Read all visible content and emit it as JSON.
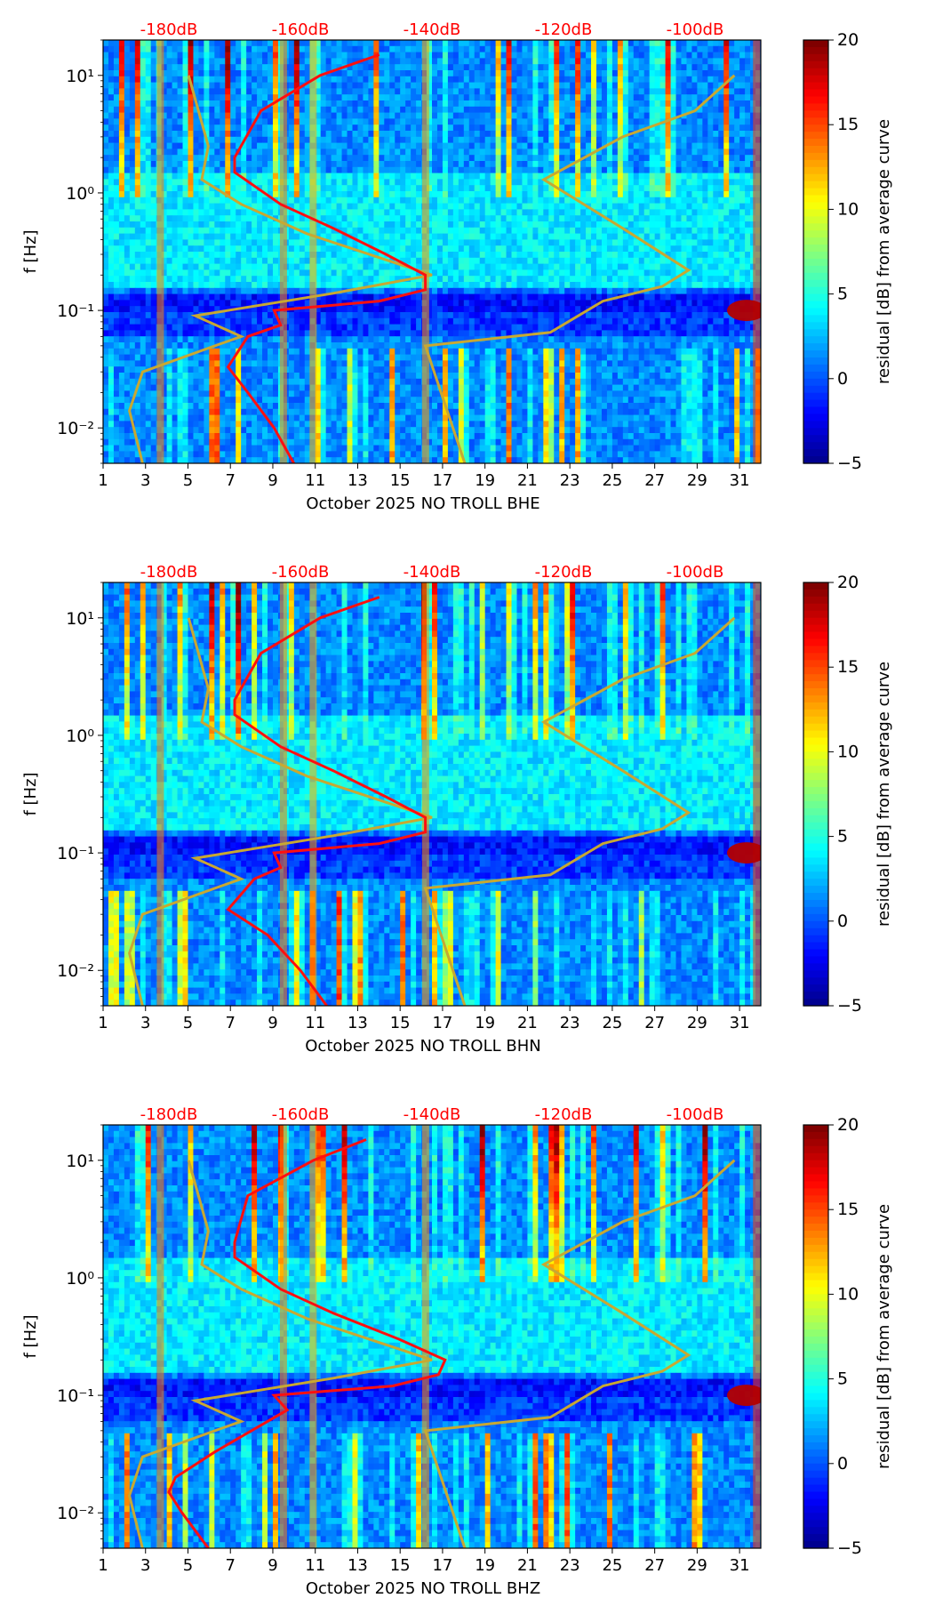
{
  "colors": {
    "db_scale": "#ff0000",
    "noise_model": "#c8a832",
    "psd_curve": "#ff1010"
  },
  "colorbar": {
    "label": "residual [dB] from average curve",
    "ticks": [
      "20",
      "15",
      "10",
      "5",
      "0",
      "−5"
    ],
    "range": [
      -5,
      20
    ],
    "colormap": "jet"
  },
  "chart_data": [
    {
      "type": "heatmap",
      "title": "",
      "xlabel": "October 2025 NO TROLL  BHE",
      "ylabel": "f [Hz]",
      "x_ticks": [
        "1",
        "3",
        "5",
        "7",
        "9",
        "11",
        "13",
        "15",
        "17",
        "19",
        "21",
        "23",
        "25",
        "27",
        "29",
        "31"
      ],
      "x_range": [
        1,
        32
      ],
      "y_ticks": [
        "10⁻²",
        "10⁻¹",
        "10⁰",
        "10¹"
      ],
      "y_range_hz": [
        0.005,
        20
      ],
      "top_axis_ticks": [
        "-180dB",
        "-160dB",
        "-140dB",
        "-120dB",
        "-100dB"
      ],
      "top_axis_range_db": [
        -190,
        -90
      ],
      "psd_curve": {
        "freq_hz": [
          0.005,
          0.01,
          0.02,
          0.033,
          0.06,
          0.075,
          0.1,
          0.12,
          0.15,
          0.2,
          0.3,
          0.5,
          0.8,
          1.5,
          2,
          5,
          10,
          15
        ],
        "db": [
          -161,
          -164,
          -168,
          -171,
          -168,
          -163,
          -164,
          -148,
          -141,
          -141,
          -147,
          -155,
          -163,
          -170,
          -170,
          -166,
          -157,
          -148
        ]
      },
      "high_noise_model": {
        "freq_hz": [
          0.005,
          0.014,
          0.03,
          0.05,
          0.06,
          0.09,
          0.14,
          0.2,
          0.45,
          0.8,
          1.3,
          2.5,
          10
        ],
        "db": [
          -184,
          -186,
          -184,
          -173,
          -169,
          -176,
          -155,
          -140,
          -159,
          -169,
          -175,
          -174,
          -177
        ]
      },
      "low_noise_model": {
        "freq_hz": [
          0.005,
          0.05,
          0.065,
          0.12,
          0.16,
          0.22,
          0.5,
          1.3,
          3,
          5,
          10
        ],
        "db": [
          -135,
          -141,
          -122,
          -114,
          -105,
          -101,
          -111,
          -123,
          -111,
          -100,
          -94
        ]
      }
    },
    {
      "type": "heatmap",
      "title": "",
      "xlabel": "October 2025 NO TROLL  BHN",
      "ylabel": "f [Hz]",
      "x_ticks": [
        "1",
        "3",
        "5",
        "7",
        "9",
        "11",
        "13",
        "15",
        "17",
        "19",
        "21",
        "23",
        "25",
        "27",
        "29",
        "31"
      ],
      "x_range": [
        1,
        32
      ],
      "y_ticks": [
        "10⁻²",
        "10⁻¹",
        "10⁰",
        "10¹"
      ],
      "y_range_hz": [
        0.005,
        20
      ],
      "top_axis_ticks": [
        "-180dB",
        "-160dB",
        "-140dB",
        "-120dB",
        "-100dB"
      ],
      "top_axis_range_db": [
        -190,
        -90
      ],
      "psd_curve": {
        "freq_hz": [
          0.005,
          0.01,
          0.02,
          0.033,
          0.06,
          0.075,
          0.1,
          0.12,
          0.15,
          0.2,
          0.3,
          0.5,
          0.8,
          1.5,
          2,
          5,
          10,
          15
        ],
        "db": [
          -156,
          -160,
          -165,
          -171,
          -167,
          -163,
          -164,
          -148,
          -141,
          -141,
          -147,
          -155,
          -163,
          -170,
          -170,
          -166,
          -157,
          -148
        ]
      },
      "high_noise_model": {
        "freq_hz": [
          0.005,
          0.014,
          0.03,
          0.05,
          0.06,
          0.09,
          0.14,
          0.2,
          0.45,
          0.8,
          1.3,
          2.5,
          10
        ],
        "db": [
          -184,
          -186,
          -184,
          -173,
          -169,
          -176,
          -155,
          -140,
          -159,
          -169,
          -175,
          -174,
          -177
        ]
      },
      "low_noise_model": {
        "freq_hz": [
          0.005,
          0.05,
          0.065,
          0.12,
          0.16,
          0.22,
          0.5,
          1.3,
          3,
          5,
          10
        ],
        "db": [
          -135,
          -141,
          -122,
          -114,
          -105,
          -101,
          -111,
          -123,
          -111,
          -100,
          -94
        ]
      }
    },
    {
      "type": "heatmap",
      "title": "",
      "xlabel": "October 2025 NO TROLL  BHZ",
      "ylabel": "f [Hz]",
      "x_ticks": [
        "1",
        "3",
        "5",
        "7",
        "9",
        "11",
        "13",
        "15",
        "17",
        "19",
        "21",
        "23",
        "25",
        "27",
        "29",
        "31"
      ],
      "x_range": [
        1,
        32
      ],
      "y_ticks": [
        "10⁻²",
        "10⁻¹",
        "10⁰",
        "10¹"
      ],
      "y_range_hz": [
        0.005,
        20
      ],
      "top_axis_ticks": [
        "-180dB",
        "-160dB",
        "-140dB",
        "-120dB",
        "-100dB"
      ],
      "top_axis_range_db": [
        -190,
        -90
      ],
      "psd_curve": {
        "freq_hz": [
          0.005,
          0.01,
          0.015,
          0.02,
          0.033,
          0.06,
          0.075,
          0.1,
          0.12,
          0.15,
          0.2,
          0.3,
          0.5,
          0.8,
          1.5,
          2,
          5,
          10,
          15
        ],
        "db": [
          -174,
          -178,
          -180,
          -179,
          -173,
          -165,
          -162,
          -164,
          -146,
          -139,
          -138,
          -145,
          -155,
          -163,
          -170,
          -170,
          -168,
          -158,
          -150
        ]
      },
      "high_noise_model": {
        "freq_hz": [
          0.005,
          0.014,
          0.03,
          0.05,
          0.06,
          0.09,
          0.14,
          0.2,
          0.45,
          0.8,
          1.3,
          2.5,
          10
        ],
        "db": [
          -184,
          -186,
          -184,
          -173,
          -169,
          -176,
          -155,
          -140,
          -159,
          -169,
          -175,
          -174,
          -177
        ]
      },
      "low_noise_model": {
        "freq_hz": [
          0.005,
          0.05,
          0.065,
          0.12,
          0.16,
          0.22,
          0.5,
          1.3,
          3,
          5,
          10
        ],
        "db": [
          -135,
          -141,
          -122,
          -114,
          -105,
          -101,
          -111,
          -123,
          -111,
          -100,
          -94
        ]
      }
    }
  ]
}
